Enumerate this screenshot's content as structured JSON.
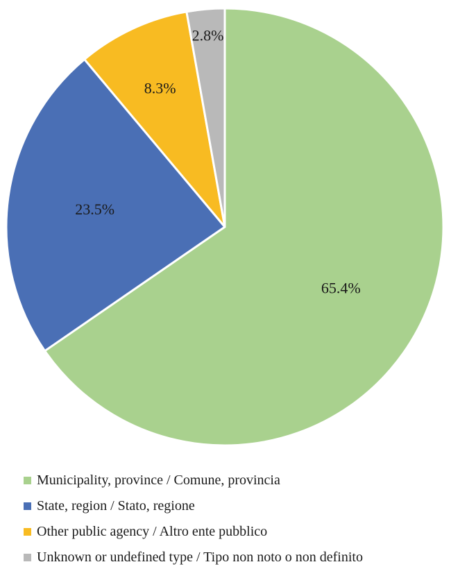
{
  "chart_data": {
    "type": "pie",
    "title": "",
    "start_angle_deg": 0,
    "direction": "clockwise",
    "value_format": "percent",
    "legend_position": "bottom-left",
    "slices": [
      {
        "label": "Municipality, province / Comune, provincia",
        "value": 65.4,
        "display": "65.4%",
        "color": "#A9D18E"
      },
      {
        "label": "State, region / Stato, regione",
        "value": 23.5,
        "display": "23.5%",
        "color": "#4A6FB5"
      },
      {
        "label": "Other public agency / Altro ente pubblico",
        "value": 8.3,
        "display": "8.3%",
        "color": "#F8BB22"
      },
      {
        "label": "Unknown or undefined type / Tipo non noto o non definito",
        "value": 2.8,
        "display": "2.8%",
        "color": "#B9B9B9"
      }
    ]
  }
}
